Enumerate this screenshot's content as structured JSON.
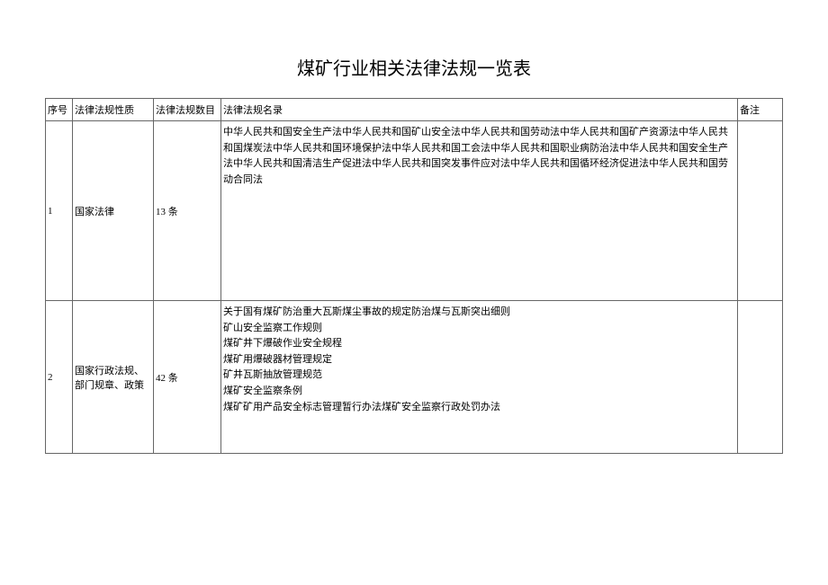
{
  "title": "煤矿行业相关法律法规一览表",
  "headers": {
    "seq": "序号",
    "nature": "法律法规性质",
    "count": "法律法规数目",
    "catalog": "法律法规名录",
    "remark": "备注"
  },
  "rows": [
    {
      "seq": "1",
      "nature": "国家法律",
      "count": "13 条",
      "catalog": "中华人民共和国安全生产法中华人民共和国矿山安全法中华人民共和国劳动法中华人民共和国矿产资源法中华人民共和国煤炭法中华人民共和国环境保护法中华人民共和国工会法中华人民共和国职业病防治法中华人民共和国安全生产法中华人民共和国清洁生产促进法中华人民共和国突发事件应对法中华人民共和国循环经济促进法中华人民共和国劳动合同法",
      "remark": ""
    },
    {
      "seq": "2",
      "nature": "国家行政法规、部门规章、政策",
      "count": "42 条",
      "catalog": "关于国有煤矿防治重大瓦斯煤尘事故的规定防治煤与瓦斯突出细则\n矿山安全监察工作规则\n煤矿井下爆破作业安全规程\n煤矿用爆破器材管理规定\n矿井瓦斯抽放管理规范\n煤矿安全监察条例\n煤矿矿用产品安全标志管理暂行办法煤矿安全监察行政处罚办法",
      "remark": ""
    }
  ],
  "styles": {
    "background_color": "#ffffff",
    "border_color": "#666666",
    "text_color": "#000000",
    "title_fontsize": 20,
    "cell_fontsize": 11,
    "font_family": "SimSun",
    "col_widths": {
      "seq": 30,
      "nature": 90,
      "count": 75,
      "remark": 50
    }
  }
}
